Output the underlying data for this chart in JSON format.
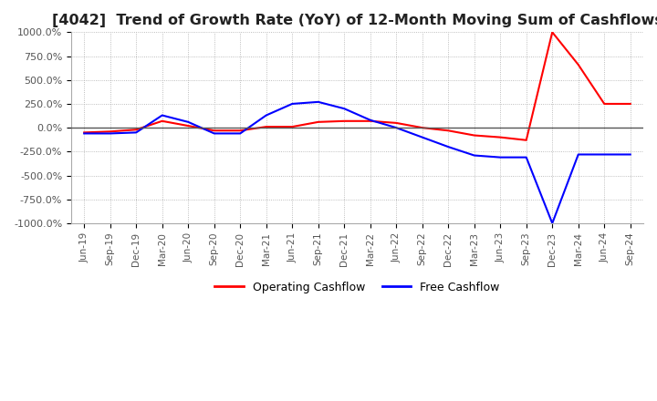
{
  "title": "[4042]  Trend of Growth Rate (YoY) of 12-Month Moving Sum of Cashflows",
  "title_fontsize": 11.5,
  "ylim": [
    -1000,
    1000
  ],
  "yticks": [
    -1000,
    -750,
    -500,
    -250,
    0,
    250,
    500,
    750,
    1000
  ],
  "background_color": "#ffffff",
  "plot_background_color": "#ffffff",
  "grid_color": "#aaaaaa",
  "legend_labels": [
    "Operating Cashflow",
    "Free Cashflow"
  ],
  "legend_colors": [
    "#ff0000",
    "#0000ff"
  ],
  "x_labels": [
    "Jun-19",
    "Sep-19",
    "Dec-19",
    "Mar-20",
    "Jun-20",
    "Sep-20",
    "Dec-20",
    "Mar-21",
    "Jun-21",
    "Sep-21",
    "Dec-21",
    "Mar-22",
    "Jun-22",
    "Sep-22",
    "Dec-22",
    "Mar-23",
    "Jun-23",
    "Sep-23",
    "Dec-23",
    "Mar-24",
    "Jun-24",
    "Sep-24"
  ],
  "operating_cashflow": [
    -50,
    -40,
    -20,
    70,
    20,
    -30,
    -30,
    10,
    10,
    60,
    70,
    70,
    50,
    0,
    -30,
    -80,
    -100,
    -130,
    1000,
    660,
    250,
    250
  ],
  "free_cashflow": [
    -60,
    -60,
    -50,
    130,
    60,
    -60,
    -60,
    130,
    250,
    270,
    200,
    80,
    0,
    -100,
    -200,
    -290,
    -310,
    -310,
    -1000,
    -280,
    -280,
    -280
  ]
}
